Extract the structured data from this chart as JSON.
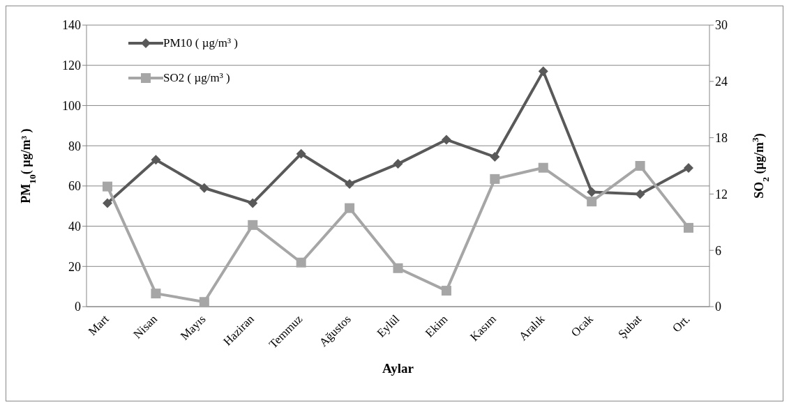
{
  "chart_data": {
    "type": "line",
    "xlabel": "Aylar",
    "ylabel": "PM$_{10}$( µg/m³ )",
    "y2label": "SO$_{2}$ (µg/m$^{3}$)",
    "categories": [
      "Mart",
      "Nisan",
      "Mayıs",
      "Haziran",
      "Temmuz",
      "Ağustos",
      "Eylül",
      "Ekim",
      "Kasım",
      "Aralık",
      "Ocak",
      "Şubat",
      "Ort."
    ],
    "series": [
      {
        "name": "PM10 ( µg/m³ )",
        "color": "#595959",
        "marker": "diamond",
        "values": [
          51.5,
          73,
          59,
          51.5,
          76,
          61,
          71,
          83,
          74.5,
          117,
          57,
          56,
          69
        ]
      },
      {
        "name": "SO2 ( µg/m³ )",
        "color": "#a6a6a6",
        "marker": "square",
        "axis": "y2",
        "values": [
          12.8,
          1.4,
          0.5,
          8.7,
          4.7,
          10.5,
          4.1,
          1.7,
          13.6,
          14.8,
          11.2,
          15,
          8.4
        ]
      }
    ],
    "ylim": [
      0,
      140
    ],
    "yticks": [
      0,
      20,
      40,
      60,
      80,
      100,
      120,
      140
    ],
    "y2lim": [
      0,
      30
    ],
    "y2ticks": [
      0,
      6,
      12,
      18,
      24,
      30
    ],
    "grid": "y",
    "legend": "top left"
  }
}
